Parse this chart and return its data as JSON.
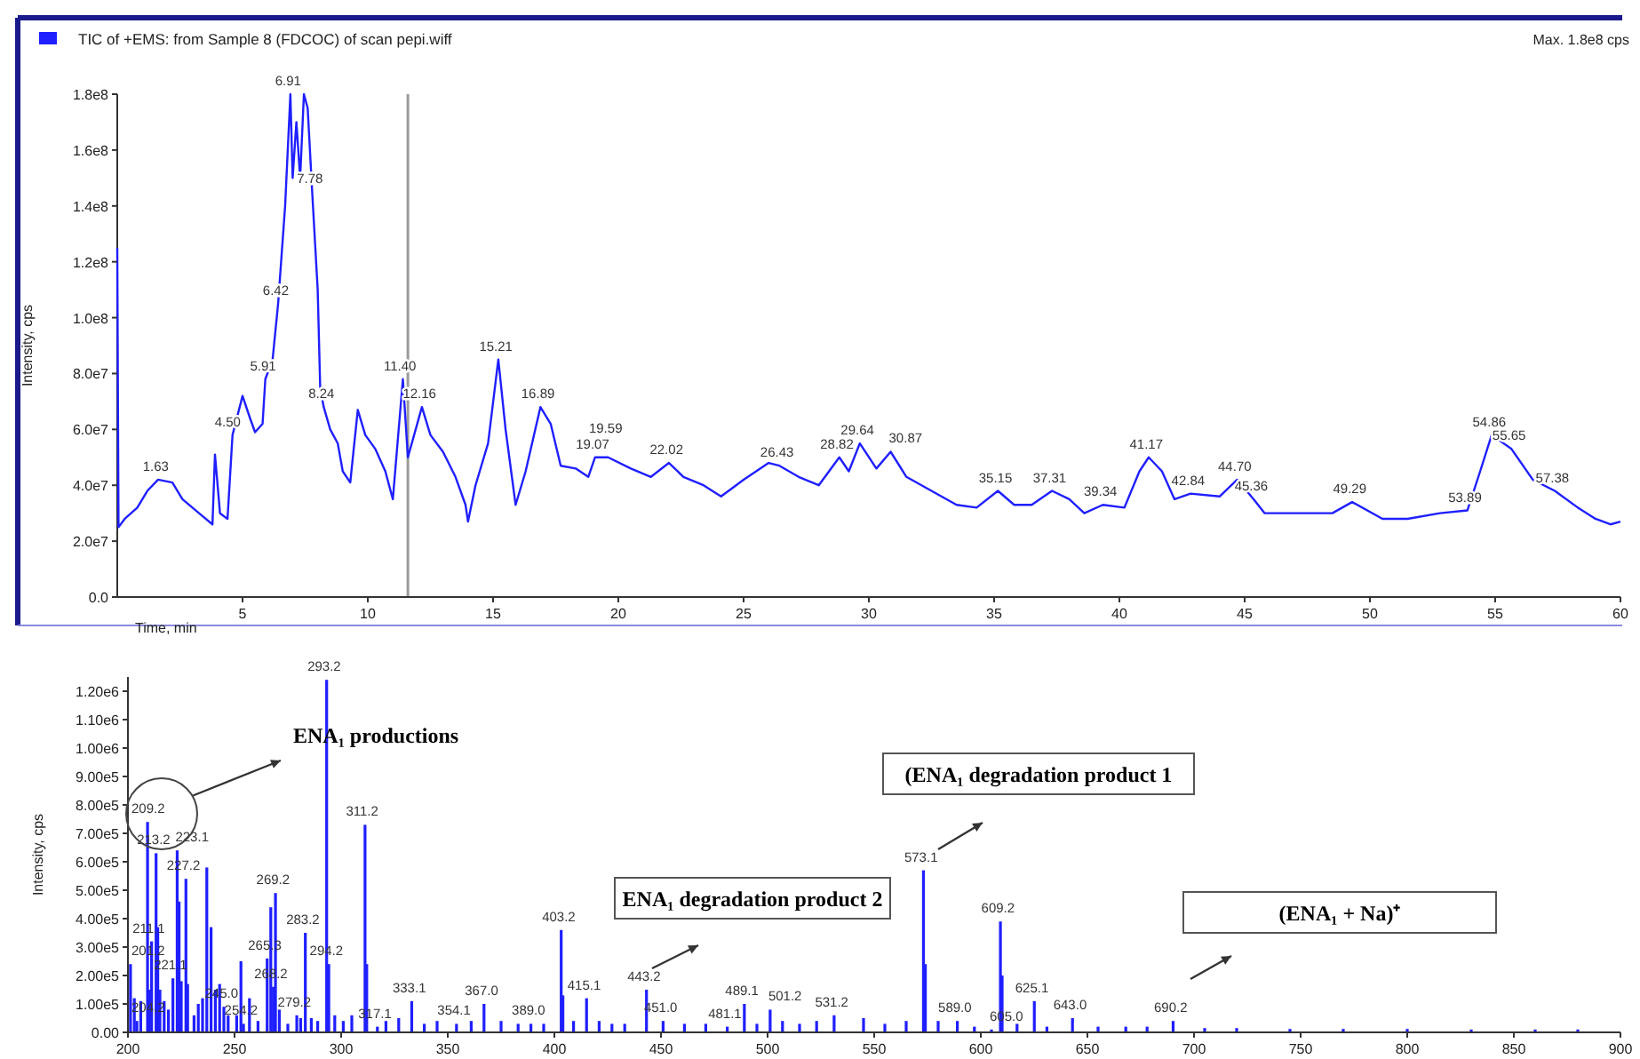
{
  "chart_data": [
    {
      "type": "line",
      "title": "TIC of +EMS: from Sample 8 (FDCOC) of scan pepi.wiff",
      "xlabel": "Time, min",
      "ylabel": "Intensity, cps",
      "xlim": [
        0,
        60
      ],
      "ylim": [
        0,
        180000000
      ],
      "xticks": [
        5,
        10,
        15,
        20,
        25,
        30,
        35,
        40,
        45,
        50,
        55,
        60
      ],
      "yticks": [
        {
          "value": 0,
          "label": "0.0"
        },
        {
          "value": 20000000,
          "label": "2.0e7"
        },
        {
          "value": 40000000,
          "label": "4.0e7"
        },
        {
          "value": 60000000,
          "label": "6.0e7"
        },
        {
          "value": 80000000,
          "label": "8.0e7"
        },
        {
          "value": 100000000,
          "label": "1.0e8"
        },
        {
          "value": 120000000,
          "label": "1.2e8"
        },
        {
          "value": 140000000,
          "label": "1.4e8"
        },
        {
          "value": 160000000,
          "label": "1.6e8"
        },
        {
          "value": 180000000,
          "label": "1.8e8"
        }
      ],
      "ref_lines": [
        {
          "axis": "x",
          "value": 11.6,
          "color": "#9a9a9a"
        }
      ],
      "series": [
        {
          "color": "#1f1fff",
          "x": [
            0,
            0.05,
            0.3,
            0.8,
            1.2,
            1.63,
            2.2,
            2.6,
            3.0,
            3.4,
            3.8,
            3.9,
            4.1,
            4.4,
            4.6,
            5.0,
            5.3,
            5.5,
            5.8,
            5.91,
            6.2,
            6.42,
            6.7,
            6.91,
            7.0,
            7.15,
            7.3,
            7.45,
            7.6,
            7.78,
            8.0,
            8.1,
            8.24,
            8.5,
            8.8,
            9.0,
            9.3,
            9.6,
            9.9,
            10.3,
            10.7,
            11.0,
            11.4,
            11.6,
            12.16,
            12.5,
            13.0,
            13.5,
            13.9,
            14.0,
            14.3,
            14.8,
            15.21,
            15.5,
            15.9,
            16.3,
            16.89,
            17.3,
            17.7,
            18.3,
            18.8,
            19.07,
            19.59,
            20.5,
            21.3,
            22.02,
            22.6,
            23.4,
            24.1,
            25.0,
            26.0,
            26.43,
            27.2,
            28.0,
            28.82,
            29.2,
            29.64,
            30.3,
            30.87,
            31.5,
            32.5,
            33.5,
            34.3,
            35.15,
            35.8,
            36.5,
            37.31,
            38.0,
            38.6,
            39.34,
            40.2,
            40.8,
            41.17,
            41.7,
            42.2,
            42.84,
            44.0,
            44.7,
            45.36,
            45.8,
            47.0,
            48.5,
            49.29,
            50.5,
            51.5,
            52.8,
            53.89,
            54.4,
            54.86,
            55.65,
            56.5,
            57.38,
            58.3,
            59.0,
            59.6,
            60
          ],
          "values": [
            125000000,
            25000000,
            28000000,
            32000000,
            38000000,
            42000000,
            41000000,
            35000000,
            32000000,
            29000000,
            26000000,
            51000000,
            30000000,
            28000000,
            58000000,
            72000000,
            64000000,
            59000000,
            62000000,
            78000000,
            85000000,
            105000000,
            140000000,
            180000000,
            150000000,
            170000000,
            150000000,
            180000000,
            175000000,
            145000000,
            110000000,
            75000000,
            68000000,
            60000000,
            55000000,
            45000000,
            41000000,
            67000000,
            58000000,
            53000000,
            45000000,
            35000000,
            78000000,
            50000000,
            68000000,
            58000000,
            52000000,
            43000000,
            33000000,
            27000000,
            40000000,
            55000000,
            85000000,
            60000000,
            33000000,
            45000000,
            68000000,
            62000000,
            47000000,
            46000000,
            43000000,
            50000000,
            50000000,
            46000000,
            43000000,
            48000000,
            43000000,
            40000000,
            36000000,
            42000000,
            48000000,
            47000000,
            43000000,
            40000000,
            50000000,
            45000000,
            55000000,
            46000000,
            52000000,
            43000000,
            38000000,
            33000000,
            32000000,
            38000000,
            33000000,
            33000000,
            38000000,
            35000000,
            30000000,
            33000000,
            32000000,
            45000000,
            50000000,
            45000000,
            35000000,
            37000000,
            36000000,
            42000000,
            35000000,
            30000000,
            30000000,
            30000000,
            34000000,
            28000000,
            28000000,
            30000000,
            31000000,
            45000000,
            58000000,
            53000000,
            42000000,
            38000000,
            32000000,
            28000000,
            26000000,
            27000000
          ]
        }
      ],
      "annotations": [
        "Max. 1.8e8 cps",
        {
          "text": "1.63",
          "x": 1.63,
          "y": 42000000
        },
        {
          "text": "4.50",
          "x": 4.5,
          "y": 58000000
        },
        {
          "text": "5.91",
          "x": 5.91,
          "y": 78000000
        },
        {
          "text": "6.42",
          "x": 6.42,
          "y": 105000000
        },
        {
          "text": "6.91",
          "x": 6.91,
          "y": 180000000
        },
        {
          "text": "7.78",
          "x": 7.78,
          "y": 145000000
        },
        {
          "text": "8.24",
          "x": 8.24,
          "y": 68000000
        },
        {
          "text": "11.40",
          "x": 11.4,
          "y": 78000000
        },
        {
          "text": "12.16",
          "x": 12.16,
          "y": 68000000
        },
        {
          "text": "15.21",
          "x": 15.21,
          "y": 85000000
        },
        {
          "text": "16.89",
          "x": 16.89,
          "y": 68000000
        },
        {
          "text": "19.07",
          "x": 19.07,
          "y": 50000000
        },
        {
          "text": "19.59",
          "x": 19.59,
          "y": 50000000
        },
        {
          "text": "22.02",
          "x": 22.02,
          "y": 48000000
        },
        {
          "text": "26.43",
          "x": 26.43,
          "y": 47000000
        },
        {
          "text": "28.82",
          "x": 28.82,
          "y": 50000000
        },
        {
          "text": "29.64",
          "x": 29.64,
          "y": 55000000
        },
        {
          "text": "30.87",
          "x": 30.87,
          "y": 52000000
        },
        {
          "text": "35.15",
          "x": 35.15,
          "y": 38000000
        },
        {
          "text": "37.31",
          "x": 37.31,
          "y": 38000000
        },
        {
          "text": "39.34",
          "x": 39.34,
          "y": 33000000
        },
        {
          "text": "41.17",
          "x": 41.17,
          "y": 50000000
        },
        {
          "text": "42.84",
          "x": 42.84,
          "y": 37000000
        },
        {
          "text": "44.70",
          "x": 44.7,
          "y": 42000000
        },
        {
          "text": "45.36",
          "x": 45.36,
          "y": 35000000
        },
        {
          "text": "49.29",
          "x": 49.29,
          "y": 34000000
        },
        {
          "text": "53.89",
          "x": 53.89,
          "y": 31000000
        },
        {
          "text": "54.86",
          "x": 54.86,
          "y": 58000000
        },
        {
          "text": "55.65",
          "x": 55.65,
          "y": 53000000
        },
        {
          "text": "57.38",
          "x": 57.38,
          "y": 38000000
        }
      ]
    },
    {
      "type": "bar",
      "ylabel": "Intensity, cps",
      "xlim": [
        200,
        900
      ],
      "ylim": [
        0,
        1250000
      ],
      "xticks": [
        200,
        250,
        300,
        350,
        400,
        450,
        500,
        550,
        600,
        650,
        700,
        750,
        800,
        850,
        900
      ],
      "yticks": [
        {
          "value": 0,
          "label": "0.00"
        },
        {
          "value": 100000,
          "label": "1.00e5"
        },
        {
          "value": 200000,
          "label": "2.00e5"
        },
        {
          "value": 300000,
          "label": "3.00e5"
        },
        {
          "value": 400000,
          "label": "4.00e5"
        },
        {
          "value": 500000,
          "label": "5.00e5"
        },
        {
          "value": 600000,
          "label": "6.00e5"
        },
        {
          "value": 700000,
          "label": "7.00e5"
        },
        {
          "value": 800000,
          "label": "8.00e5"
        },
        {
          "value": 900000,
          "label": "9.00e5"
        },
        {
          "value": 1000000,
          "label": "1.00e6"
        },
        {
          "value": 1100000,
          "label": "1.10e6"
        },
        {
          "value": 1200000,
          "label": "1.20e6"
        }
      ],
      "series": [
        {
          "color": "#1f1fff",
          "x": [
            201.2,
            203,
            204.2,
            206,
            209.2,
            210,
            211.1,
            213.2,
            214,
            215,
            217,
            219,
            221.1,
            223.1,
            224,
            225,
            227.2,
            228,
            231,
            233,
            235,
            237,
            239,
            241,
            243,
            245,
            247,
            251,
            253,
            254.2,
            257,
            261,
            265.3,
            267,
            268.2,
            269.2,
            271,
            275,
            279.2,
            281,
            283.2,
            286,
            289,
            293.2,
            294.2,
            297,
            301,
            305,
            311.2,
            312,
            317,
            321,
            327,
            333.1,
            339,
            345,
            354.1,
            361,
            367,
            375,
            383,
            389,
            395,
            403.2,
            404,
            409,
            415.1,
            421,
            427,
            433,
            443.2,
            451,
            461,
            471,
            481.1,
            489.1,
            495,
            501.2,
            507,
            515,
            523,
            531.2,
            545,
            555,
            565,
            573.1,
            574,
            580,
            589,
            597,
            605,
            609.2,
            610,
            617,
            625.1,
            631,
            643,
            655,
            668,
            678,
            690.2,
            705,
            720,
            745,
            770,
            800,
            830,
            860,
            880
          ],
          "values": [
            240000,
            120000,
            40000,
            110000,
            740000,
            150000,
            320000,
            630000,
            370000,
            150000,
            110000,
            80000,
            190000,
            640000,
            460000,
            180000,
            540000,
            170000,
            60000,
            100000,
            120000,
            580000,
            370000,
            150000,
            170000,
            90000,
            60000,
            60000,
            250000,
            30000,
            120000,
            40000,
            260000,
            440000,
            160000,
            490000,
            80000,
            30000,
            60000,
            50000,
            350000,
            50000,
            40000,
            1240000,
            240000,
            60000,
            40000,
            60000,
            730000,
            240000,
            20000,
            40000,
            50000,
            110000,
            30000,
            40000,
            30000,
            40000,
            100000,
            40000,
            30000,
            30000,
            30000,
            360000,
            130000,
            40000,
            120000,
            40000,
            30000,
            30000,
            150000,
            40000,
            30000,
            30000,
            20000,
            100000,
            30000,
            80000,
            40000,
            30000,
            40000,
            60000,
            50000,
            30000,
            40000,
            570000,
            240000,
            40000,
            40000,
            20000,
            10000,
            390000,
            200000,
            30000,
            110000,
            20000,
            50000,
            20000,
            20000,
            20000,
            40000,
            15000,
            15000,
            12000,
            12000,
            12000,
            10000,
            10000,
            10000
          ]
        }
      ],
      "annotations": [
        {
          "text": "209.2",
          "x": 209.2,
          "y": 740000
        },
        {
          "text": "213.2",
          "x": 213.2,
          "y": 630000
        },
        {
          "text": "223.1",
          "x": 223.1,
          "y": 640000
        },
        {
          "text": "227.2",
          "x": 227.2,
          "y": 540000
        },
        {
          "text": "211.1",
          "x": 211.1,
          "y": 320000
        },
        {
          "text": "201.2",
          "x": 201.2,
          "y": 240000
        },
        {
          "text": "221.1",
          "x": 221.1,
          "y": 190000
        },
        {
          "text": "204.2",
          "x": 204.2,
          "y": 40000
        },
        {
          "text": "245.0",
          "x": 245,
          "y": 90000
        },
        {
          "text": "265.3",
          "x": 265.3,
          "y": 260000
        },
        {
          "text": "268.2",
          "x": 268.2,
          "y": 160000
        },
        {
          "text": "269.2",
          "x": 269.2,
          "y": 490000
        },
        {
          "text": "254.2",
          "x": 254.2,
          "y": 30000
        },
        {
          "text": "279.2",
          "x": 279.2,
          "y": 60000
        },
        {
          "text": "283.2",
          "x": 283.2,
          "y": 350000
        },
        {
          "text": "293.2",
          "x": 293.2,
          "y": 1240000
        },
        {
          "text": "294.2",
          "x": 294.2,
          "y": 240000
        },
        {
          "text": "311.2",
          "x": 311.2,
          "y": 730000
        },
        {
          "text": "317.1",
          "x": 317,
          "y": 20000
        },
        {
          "text": "333.1",
          "x": 333.1,
          "y": 110000
        },
        {
          "text": "354.1",
          "x": 354.1,
          "y": 30000
        },
        {
          "text": "367.0",
          "x": 367,
          "y": 100000
        },
        {
          "text": "389.0",
          "x": 389,
          "y": 30000
        },
        {
          "text": "403.2",
          "x": 403.2,
          "y": 360000
        },
        {
          "text": "415.1",
          "x": 415.1,
          "y": 120000
        },
        {
          "text": "443.2",
          "x": 443.2,
          "y": 150000
        },
        {
          "text": "451.0",
          "x": 451,
          "y": 40000
        },
        {
          "text": "481.1",
          "x": 481.1,
          "y": 20000
        },
        {
          "text": "489.1",
          "x": 489.1,
          "y": 100000
        },
        {
          "text": "501.2",
          "x": 501.2,
          "y": 80000
        },
        {
          "text": "531.2",
          "x": 531.2,
          "y": 60000
        },
        {
          "text": "573.1",
          "x": 573.1,
          "y": 570000
        },
        {
          "text": "589.0",
          "x": 589,
          "y": 40000
        },
        {
          "text": "605.0",
          "x": 605,
          "y": 10000
        },
        {
          "text": "609.2",
          "x": 609.2,
          "y": 390000
        },
        {
          "text": "625.1",
          "x": 625.1,
          "y": 110000
        },
        {
          "text": "643.0",
          "x": 643,
          "y": 50000
        },
        {
          "text": "690.2",
          "x": 690.2,
          "y": 40000
        },
        "ENA₁ productions",
        "ENA₁ degradation product 2",
        "(ENA₁ degradation product 1",
        "(ENA₁ + Na)⁺"
      ]
    }
  ]
}
